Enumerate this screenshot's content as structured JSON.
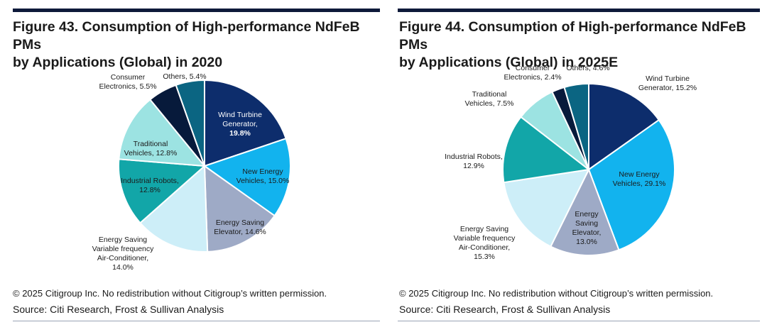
{
  "figures": [
    {
      "title_line1": "Figure 43. Consumption of High-performance NdFeB PMs",
      "title_line2": "by Applications (Global) in 2020",
      "copyright": "© 2025 Citigroup Inc. No redistribution without Citigroup’s written permission.",
      "source": "Source: Citi Research, Frost & Sullivan Analysis"
    },
    {
      "title_line1": "Figure 44. Consumption of High-performance NdFeB PMs",
      "title_line2": "by Applications (Global) in 2025E",
      "copyright": "© 2025 Citigroup Inc. No redistribution without Citigroup’s written permission.",
      "source": "Source: Citi Research, Frost & Sullivan Analysis"
    }
  ],
  "chart_data": [
    {
      "type": "pie",
      "title": "Consumption of High-performance NdFeB PMs by Applications (Global) in 2020",
      "unit": "%",
      "slices": [
        {
          "name": "Wind Turbine Generator",
          "value": 19.8,
          "color": "#0d2d6c",
          "label_lines": [
            "Wind Turbine",
            "Generator,",
            "19.8%"
          ],
          "label_color": "#ffffff",
          "bold_value": true
        },
        {
          "name": "New Energy Vehicles",
          "value": 15.0,
          "color": "#12b3ee",
          "label_lines": [
            "New Energy",
            "Vehicles, 15.0%"
          ],
          "label_color": "#1b1b1b"
        },
        {
          "name": "Energy Saving Elevator",
          "value": 14.6,
          "color": "#9eaac6",
          "label_lines": [
            "Energy Saving",
            "Elevator, 14.6%"
          ],
          "label_color": "#1b1b1b"
        },
        {
          "name": "Energy Saving Variable frequency Air-Conditioner",
          "value": 14.0,
          "color": "#cdeef8",
          "label_lines": [
            "Energy Saving",
            "Variable frequency",
            "Air-Conditioner,",
            "14.0%"
          ],
          "label_color": "#1b1b1b"
        },
        {
          "name": "Industrial Robots",
          "value": 12.8,
          "color": "#12a6a8",
          "label_lines": [
            "Industrial Robots,",
            "12.8%"
          ],
          "label_color": "#1b1b1b"
        },
        {
          "name": "Traditional Vehicles",
          "value": 12.8,
          "color": "#9ce3e2",
          "label_lines": [
            "Traditional",
            "Vehicles, 12.8%"
          ],
          "label_color": "#1b1b1b"
        },
        {
          "name": "Consumer Electronics",
          "value": 5.5,
          "color": "#071a3b",
          "label_lines": [
            "Consumer",
            "Electronics, 5.5%"
          ],
          "label_color": "#1b1b1b"
        },
        {
          "name": "Others",
          "value": 5.4,
          "color": "#0b6582",
          "label_lines": [
            "Others, 5.4%"
          ],
          "label_color": "#1b1b1b"
        }
      ]
    },
    {
      "type": "pie",
      "title": "Consumption of High-performance NdFeB PMs by Applications (Global) in 2025E",
      "unit": "%",
      "slices": [
        {
          "name": "Wind Turbine Generator",
          "value": 15.2,
          "color": "#0d2d6c",
          "label_lines": [
            "Wind Turbine",
            "Generator, 15.2%"
          ],
          "label_color": "#1b1b1b"
        },
        {
          "name": "New Energy Vehicles",
          "value": 29.1,
          "color": "#12b3ee",
          "label_lines": [
            "New Energy",
            "Vehicles, 29.1%"
          ],
          "label_color": "#1b1b1b"
        },
        {
          "name": "Energy Saving Elevator",
          "value": 13.0,
          "color": "#9eaac6",
          "label_lines": [
            "Energy",
            "Saving",
            "Elevator,",
            "13.0%"
          ],
          "label_color": "#1b1b1b"
        },
        {
          "name": "Energy Saving Variable frequency Air-Conditioner",
          "value": 15.3,
          "color": "#cdeef8",
          "label_lines": [
            "Energy Saving",
            "Variable frequency",
            "Air-Conditioner,",
            "15.3%"
          ],
          "label_color": "#1b1b1b"
        },
        {
          "name": "Industrial Robots",
          "value": 12.9,
          "color": "#12a6a8",
          "label_lines": [
            "Industrial Robots,",
            "12.9%"
          ],
          "label_color": "#1b1b1b"
        },
        {
          "name": "Traditional Vehicles",
          "value": 7.5,
          "color": "#9ce3e2",
          "label_lines": [
            "Traditional",
            "Vehicles, 7.5%"
          ],
          "label_color": "#1b1b1b"
        },
        {
          "name": "Consumer Electronics",
          "value": 2.4,
          "color": "#071a3b",
          "label_lines": [
            "Consumer",
            "Electronics, 2.4%"
          ],
          "label_color": "#1b1b1b"
        },
        {
          "name": "Others",
          "value": 4.6,
          "color": "#0b6582",
          "label_lines": [
            "Others, 4.6%"
          ],
          "label_color": "#1b1b1b"
        }
      ]
    }
  ]
}
